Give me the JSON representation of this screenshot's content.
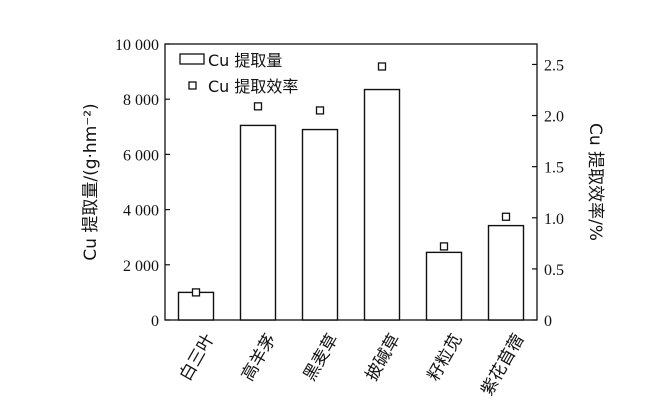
{
  "chart_data": {
    "type": "bar",
    "categories": [
      "白三叶",
      "高羊茅",
      "黑麦草",
      "披碱草",
      "籽粒苋",
      "紫花苜蓿"
    ],
    "series": [
      {
        "name": "Cu 提取量",
        "type": "bar",
        "axis": "left",
        "values": [
          1000,
          7050,
          6900,
          8350,
          2450,
          3420
        ]
      },
      {
        "name": "Cu 提取效率",
        "type": "scatter",
        "axis": "right",
        "values": [
          0.27,
          2.09,
          2.05,
          2.48,
          0.72,
          1.01
        ]
      }
    ],
    "ylabel": "Cu 提取量/(g·hm⁻²)",
    "ylabel_right": "Cu 提取效率/%",
    "ylim": [
      0,
      10000
    ],
    "ylim_right": [
      0,
      2.7
    ],
    "yticks": [
      "0",
      "2 000",
      "4 000",
      "6 000",
      "8 000",
      "10 000"
    ],
    "yticks_right": [
      "0",
      "0.5",
      "1.0",
      "1.5",
      "2.0",
      "2.5"
    ],
    "legend_position": "top-left",
    "grid": false
  }
}
